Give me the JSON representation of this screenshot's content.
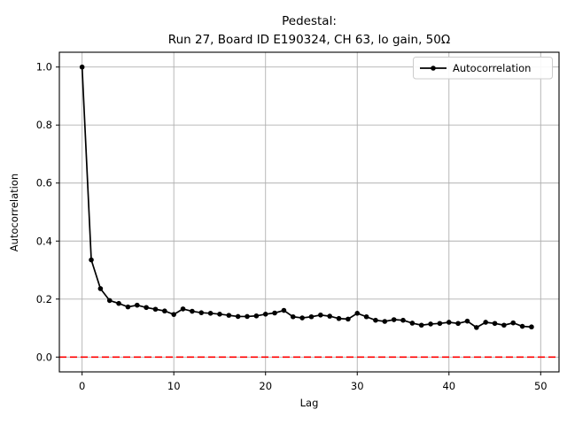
{
  "chart_data": {
    "type": "line",
    "title_lines": [
      "Pedestal:",
      "Run 27, Board ID E190324, CH 63, lo gain, 50Ω"
    ],
    "xlabel": "Lag",
    "ylabel": "Autocorrelation",
    "legend": {
      "position": "upper right",
      "entries": [
        "Autocorrelation"
      ]
    },
    "series": [
      {
        "name": "Autocorrelation",
        "color": "#000000",
        "marker": "dot",
        "x": [
          0,
          1,
          2,
          3,
          4,
          5,
          6,
          7,
          8,
          9,
          10,
          11,
          12,
          13,
          14,
          15,
          16,
          17,
          18,
          19,
          20,
          21,
          22,
          23,
          24,
          25,
          26,
          27,
          28,
          29,
          30,
          31,
          32,
          33,
          34,
          35,
          36,
          37,
          38,
          39,
          40,
          41,
          42,
          43,
          44,
          45,
          46,
          47,
          48,
          49
        ],
        "values": [
          1.0,
          0.335,
          0.236,
          0.195,
          0.185,
          0.173,
          0.179,
          0.171,
          0.165,
          0.159,
          0.147,
          0.166,
          0.158,
          0.153,
          0.151,
          0.148,
          0.144,
          0.14,
          0.14,
          0.142,
          0.148,
          0.152,
          0.161,
          0.139,
          0.135,
          0.139,
          0.145,
          0.141,
          0.133,
          0.131,
          0.151,
          0.139,
          0.127,
          0.123,
          0.129,
          0.127,
          0.117,
          0.11,
          0.114,
          0.116,
          0.12,
          0.116,
          0.124,
          0.102,
          0.12,
          0.116,
          0.11,
          0.118,
          0.106,
          0.104
        ]
      }
    ],
    "zero_line": {
      "y": 0.0,
      "color": "#ff0000",
      "style": "dashed"
    },
    "axes": {
      "xlim": [
        -2.48,
        52.0
      ],
      "ylim": [
        -0.051,
        1.051
      ],
      "xticks": [
        0,
        10,
        20,
        30,
        40,
        50
      ],
      "xtick_labels": [
        "0",
        "10",
        "20",
        "30",
        "40",
        "50"
      ],
      "yticks": [
        0.0,
        0.2,
        0.4,
        0.6,
        0.8,
        1.0
      ],
      "ytick_labels": [
        "0.0",
        "0.2",
        "0.4",
        "0.6",
        "0.8",
        "1.0"
      ],
      "grid": true,
      "grid_color": "#b0b0b0",
      "spine_color": "#000000"
    }
  }
}
